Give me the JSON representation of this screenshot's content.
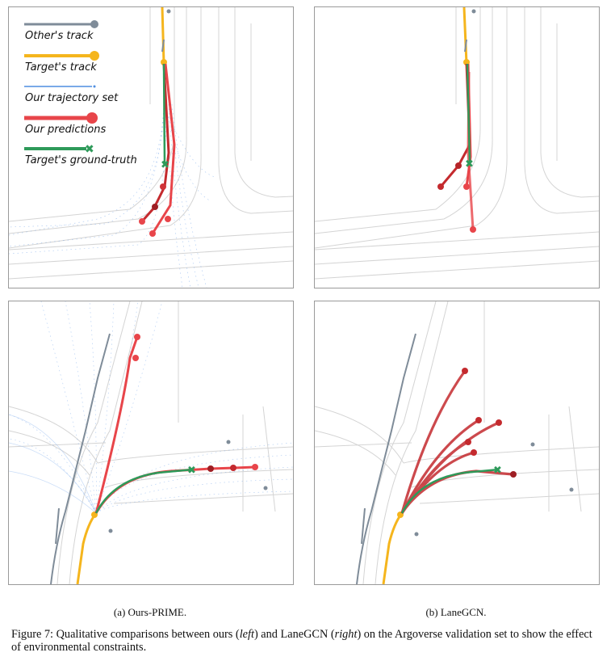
{
  "legend": {
    "others_track": "Other's track",
    "targets_track": "Target's track",
    "trajectory_set": "Our trajectory set",
    "predictions": "Our predictions",
    "ground_truth": "Target's ground-truth"
  },
  "colors": {
    "others_track": "#7f8c99",
    "targets_track": "#f5b51d",
    "trajectory_set": "#4f8ee0",
    "predictions": "#e8454a",
    "ground_truth": "#2e9a5a",
    "lanes": "#d4d4d4"
  },
  "captions": {
    "sub_a": "(a) Ours-PRIME.",
    "sub_b": "(b) LaneGCN.",
    "figure_prefix": "Figure 7: Qualitative comparisons between ours (",
    "left": "left",
    "mid": ") and LaneGCN (",
    "right": "right",
    "suffix": ") on the Argoverse validation set to show the effect of environmental constraints."
  }
}
